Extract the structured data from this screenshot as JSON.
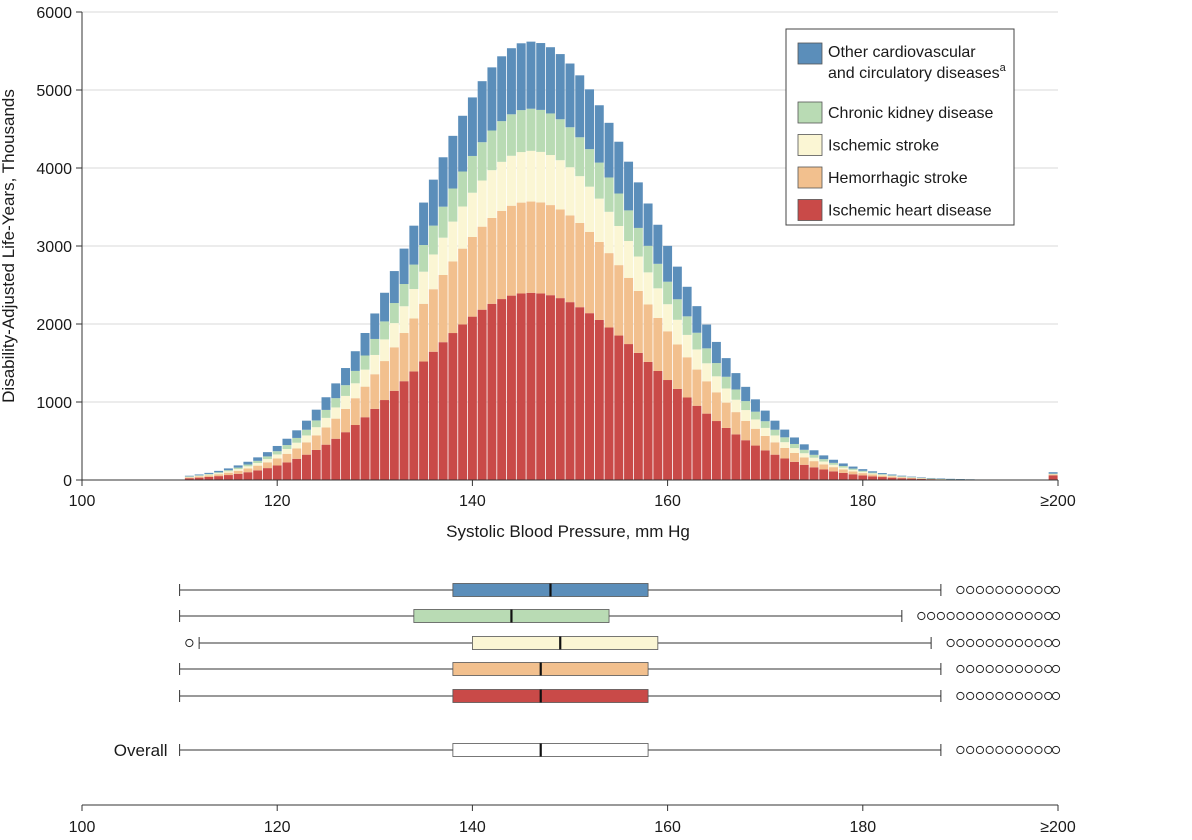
{
  "chart_data": [
    {
      "type": "bar",
      "stacked": true,
      "title": "",
      "xlabel": "Systolic Blood Pressure, mm Hg",
      "ylabel": "Disability-Adjusted Life-Years, Thousands",
      "xlim": [
        100,
        200
      ],
      "ylim": [
        0,
        6000
      ],
      "x_ticks": [
        "100",
        "120",
        "140",
        "160",
        "180",
        "≥200"
      ],
      "y_ticks": [
        "0",
        "1000",
        "2000",
        "3000",
        "4000",
        "5000",
        "6000"
      ],
      "bin_width": 1,
      "legend_position": "top-right",
      "peak_sbp": 146,
      "curve_sigma_low": 11.5,
      "curve_sigma_high": 12.5,
      "first_bin": 111,
      "last_bin": 199,
      "overflow_bin": 200,
      "series": [
        {
          "name": "Ischemic heart disease",
          "color": "#c94a48",
          "peak_value": 2400,
          "overflow_value": 60
        },
        {
          "name": "Hemorrhagic stroke",
          "color": "#f2c08e",
          "peak_value": 1170,
          "overflow_value": 12
        },
        {
          "name": "Ischemic stroke",
          "color": "#fbf6d4",
          "peak_value": 650,
          "overflow_value": 5
        },
        {
          "name": "Chronic kidney disease",
          "color": "#b9dbb4",
          "peak_value": 540,
          "overflow_value": 5
        },
        {
          "name": "Other cardiovascular and circulatory diseases",
          "color": "#5b8eba",
          "peak_value": 860,
          "overflow_value": 18
        }
      ],
      "legend": [
        {
          "lines": [
            "Other cardiovascular",
            "and circulatory diseases"
          ],
          "superscript": "a",
          "color": "#5b8eba"
        },
        {
          "lines": [
            "Chronic kidney disease"
          ],
          "superscript": "",
          "color": "#b9dbb4"
        },
        {
          "lines": [
            "Ischemic stroke"
          ],
          "superscript": "",
          "color": "#fbf6d4"
        },
        {
          "lines": [
            "Hemorrhagic stroke"
          ],
          "superscript": "",
          "color": "#f2c08e"
        },
        {
          "lines": [
            "Ischemic heart disease"
          ],
          "superscript": "",
          "color": "#c94a48"
        }
      ]
    },
    {
      "type": "boxplot",
      "xlim": [
        100,
        200
      ],
      "x_ticks": [
        "100",
        "120",
        "140",
        "160",
        "180",
        "≥200"
      ],
      "boxes": [
        {
          "name": "Other cardiovascular and circulatory diseases",
          "label": "",
          "color": "#5b8eba",
          "whisker_low": 110,
          "q1": 138,
          "median": 148,
          "q3": 158,
          "whisker_high": 188,
          "outliers_low": [],
          "outliers_high": [
            190,
            191,
            192,
            193,
            194,
            195,
            196,
            197,
            198,
            199,
            200
          ]
        },
        {
          "name": "Chronic kidney disease",
          "label": "",
          "color": "#b9dbb4",
          "whisker_low": 110,
          "q1": 134,
          "median": 144,
          "q3": 154,
          "whisker_high": 184,
          "outliers_low": [],
          "outliers_high": [
            186,
            187,
            188,
            189,
            190,
            191,
            192,
            193,
            194,
            195,
            196,
            197,
            198,
            199,
            200
          ]
        },
        {
          "name": "Ischemic stroke",
          "label": "",
          "color": "#fbf6d4",
          "whisker_low": 112,
          "q1": 140,
          "median": 149,
          "q3": 159,
          "whisker_high": 187,
          "outliers_low": [
            111
          ],
          "outliers_high": [
            189,
            190,
            191,
            192,
            193,
            194,
            195,
            196,
            197,
            198,
            199,
            200
          ]
        },
        {
          "name": "Hemorrhagic stroke",
          "label": "",
          "color": "#f2c08e",
          "whisker_low": 110,
          "q1": 138,
          "median": 147,
          "q3": 158,
          "whisker_high": 188,
          "outliers_low": [],
          "outliers_high": [
            190,
            191,
            192,
            193,
            194,
            195,
            196,
            197,
            198,
            199,
            200
          ]
        },
        {
          "name": "Ischemic heart disease",
          "label": "",
          "color": "#c94a48",
          "whisker_low": 110,
          "q1": 138,
          "median": 147,
          "q3": 158,
          "whisker_high": 188,
          "outliers_low": [],
          "outliers_high": [
            190,
            191,
            192,
            193,
            194,
            195,
            196,
            197,
            198,
            199,
            200
          ]
        },
        {
          "name": "Overall",
          "label": "Overall",
          "color": "#ffffff",
          "whisker_low": 110,
          "q1": 138,
          "median": 147,
          "q3": 158,
          "whisker_high": 188,
          "outliers_low": [],
          "outliers_high": [
            190,
            191,
            192,
            193,
            194,
            195,
            196,
            197,
            198,
            199,
            200
          ]
        }
      ]
    }
  ]
}
